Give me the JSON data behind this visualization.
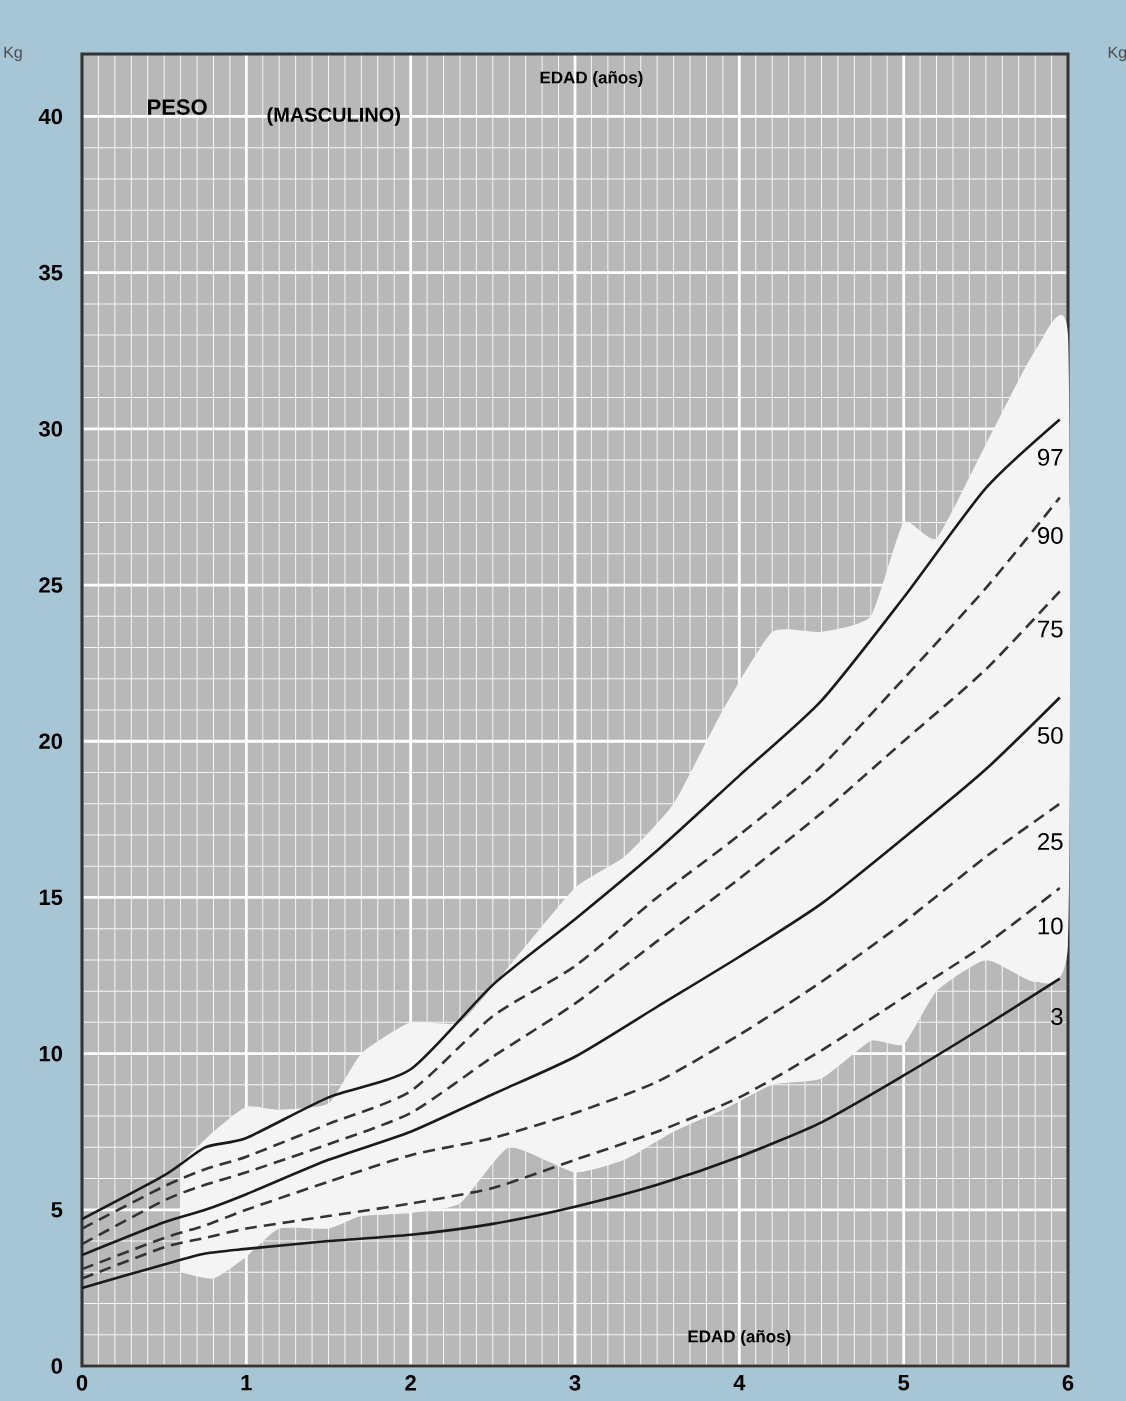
{
  "chart_data": {
    "type": "line",
    "title": "PESO",
    "subtitle": "(MASCULINO)",
    "xlabel": "EDAD (años)",
    "ylabel": "Kg",
    "annotations": [
      "EDAD (años)",
      "Kg"
    ],
    "xlim": [
      0,
      6
    ],
    "ylim": [
      0,
      42
    ],
    "xticks": [
      0,
      1,
      2,
      3,
      4,
      5,
      6
    ],
    "yticks": [
      0,
      5,
      10,
      15,
      20,
      25,
      30,
      35,
      40
    ],
    "grid": true,
    "x": [
      0,
      0.5,
      0.75,
      1,
      1.5,
      2,
      2.5,
      3,
      3.5,
      4,
      4.5,
      5,
      5.5,
      5.95
    ],
    "series": [
      {
        "type": "area",
        "color": "#f4f4f4",
        "values": [
          null,
          null,
          null,
          null,
          null,
          null,
          null,
          null,
          null,
          null,
          null,
          null,
          null,
          null,
          null,
          null,
          null,
          null,
          null,
          null,
          null
        ],
        "x": [
          0.6,
          0.8,
          1.0,
          1.2,
          1.5,
          1.7,
          2.0,
          2.3,
          2.6,
          3.0,
          3.3,
          3.6,
          3.9,
          4.2,
          4.5,
          4.8,
          5.0,
          5.2,
          5.5,
          5.8,
          6.0
        ],
        "lower": [
          3.0,
          2.8,
          3.5,
          4.4,
          4.4,
          4.8,
          4.9,
          5.2,
          7.0,
          6.2,
          6.6,
          7.5,
          8.2,
          9.0,
          9.2,
          10.4,
          10.3,
          12.0,
          13.0,
          12.3,
          13.5
        ],
        "upper": [
          6.5,
          7.5,
          8.3,
          8.2,
          8.4,
          10.0,
          11.0,
          11.0,
          12.8,
          15.3,
          16.3,
          18.0,
          21.0,
          23.5,
          23.5,
          24.0,
          27.0,
          26.5,
          29.5,
          32.5,
          33.0
        ]
      },
      {
        "name": "97",
        "color": "#1a1a1a",
        "line_style": "solid",
        "values": [
          4.7,
          6.1,
          7.0,
          7.3,
          8.6,
          9.5,
          12.2,
          14.3,
          16.5,
          18.9,
          21.3,
          24.6,
          28.1,
          30.3
        ]
      },
      {
        "name": "90",
        "color": "#333333",
        "line_style": "dashed",
        "values": [
          4.4,
          5.75,
          6.3,
          6.7,
          7.75,
          8.8,
          11.2,
          12.8,
          15.0,
          17.0,
          19.2,
          22.0,
          24.9,
          27.8
        ]
      },
      {
        "name": "75",
        "color": "#333333",
        "line_style": "dashed",
        "values": [
          3.9,
          5.3,
          5.8,
          6.2,
          7.1,
          8.1,
          9.9,
          11.6,
          13.6,
          15.6,
          17.7,
          20.0,
          22.3,
          24.8
        ]
      },
      {
        "name": "50",
        "color": "#1a1a1a",
        "line_style": "solid",
        "values": [
          3.55,
          4.6,
          5.0,
          5.5,
          6.6,
          7.5,
          8.7,
          9.9,
          11.5,
          13.1,
          14.8,
          16.9,
          19.1,
          21.4
        ]
      },
      {
        "name": "25",
        "color": "#333333",
        "line_style": "dashed",
        "values": [
          3.1,
          4.1,
          4.5,
          5.0,
          5.9,
          6.75,
          7.3,
          8.1,
          9.1,
          10.6,
          12.3,
          14.2,
          16.3,
          18.0
        ]
      },
      {
        "name": "10",
        "color": "#333333",
        "line_style": "dashed",
        "values": [
          2.8,
          3.8,
          4.1,
          4.4,
          4.8,
          5.2,
          5.7,
          6.6,
          7.5,
          8.6,
          10.1,
          11.8,
          13.5,
          15.3
        ]
      },
      {
        "name": "3",
        "color": "#1a1a1a",
        "line_style": "solid",
        "values": [
          2.5,
          3.25,
          3.6,
          3.75,
          4.0,
          4.2,
          4.55,
          5.1,
          5.8,
          6.7,
          7.8,
          9.3,
          10.9,
          12.4
        ]
      }
    ]
  }
}
